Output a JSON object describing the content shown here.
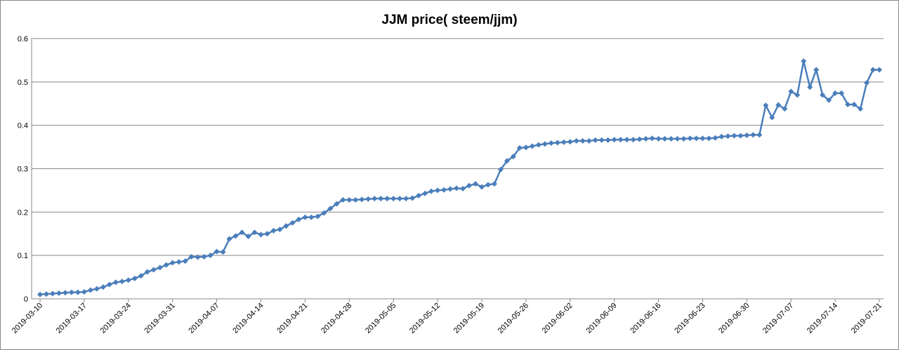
{
  "chart_data": {
    "type": "line",
    "title": "JJM price( steem/jjm)",
    "x": [
      "2019-03-10",
      "2019-03-11",
      "2019-03-12",
      "2019-03-13",
      "2019-03-14",
      "2019-03-15",
      "2019-03-16",
      "2019-03-17",
      "2019-03-18",
      "2019-03-19",
      "2019-03-20",
      "2019-03-21",
      "2019-03-22",
      "2019-03-23",
      "2019-03-24",
      "2019-03-25",
      "2019-03-26",
      "2019-03-27",
      "2019-03-28",
      "2019-03-29",
      "2019-03-30",
      "2019-03-31",
      "2019-04-01",
      "2019-04-02",
      "2019-04-03",
      "2019-04-04",
      "2019-04-05",
      "2019-04-06",
      "2019-04-07",
      "2019-04-08",
      "2019-04-09",
      "2019-04-10",
      "2019-04-11",
      "2019-04-12",
      "2019-04-13",
      "2019-04-14",
      "2019-04-15",
      "2019-04-16",
      "2019-04-17",
      "2019-04-18",
      "2019-04-19",
      "2019-04-20",
      "2019-04-21",
      "2019-04-22",
      "2019-04-23",
      "2019-04-24",
      "2019-04-25",
      "2019-04-26",
      "2019-04-27",
      "2019-04-28",
      "2019-04-29",
      "2019-04-30",
      "2019-05-01",
      "2019-05-02",
      "2019-05-03",
      "2019-05-04",
      "2019-05-05",
      "2019-05-06",
      "2019-05-07",
      "2019-05-08",
      "2019-05-09",
      "2019-05-10",
      "2019-05-11",
      "2019-05-12",
      "2019-05-13",
      "2019-05-14",
      "2019-05-15",
      "2019-05-16",
      "2019-05-17",
      "2019-05-18",
      "2019-05-19",
      "2019-05-20",
      "2019-05-21",
      "2019-05-22",
      "2019-05-23",
      "2019-05-24",
      "2019-05-25",
      "2019-05-26",
      "2019-05-27",
      "2019-05-28",
      "2019-05-29",
      "2019-05-30",
      "2019-05-31",
      "2019-06-01",
      "2019-06-02",
      "2019-06-03",
      "2019-06-04",
      "2019-06-05",
      "2019-06-06",
      "2019-06-07",
      "2019-06-08",
      "2019-06-09",
      "2019-06-10",
      "2019-06-11",
      "2019-06-12",
      "2019-06-13",
      "2019-06-14",
      "2019-06-15",
      "2019-06-16",
      "2019-06-17",
      "2019-06-18",
      "2019-06-19",
      "2019-06-20",
      "2019-06-21",
      "2019-06-22",
      "2019-06-23",
      "2019-06-24",
      "2019-06-25",
      "2019-06-26",
      "2019-06-27",
      "2019-06-28",
      "2019-06-29",
      "2019-06-30",
      "2019-07-01",
      "2019-07-02",
      "2019-07-03",
      "2019-07-04",
      "2019-07-05",
      "2019-07-06",
      "2019-07-07",
      "2019-07-08",
      "2019-07-09",
      "2019-07-10",
      "2019-07-11",
      "2019-07-12",
      "2019-07-13",
      "2019-07-14",
      "2019-07-15",
      "2019-07-16",
      "2019-07-17",
      "2019-07-18",
      "2019-07-19",
      "2019-07-20",
      "2019-07-21"
    ],
    "series": [
      {
        "name": "JJM price",
        "color": "#4a7ebb",
        "values": [
          0.01,
          0.011,
          0.012,
          0.013,
          0.014,
          0.015,
          0.015,
          0.016,
          0.02,
          0.023,
          0.027,
          0.033,
          0.038,
          0.04,
          0.043,
          0.047,
          0.053,
          0.062,
          0.067,
          0.072,
          0.078,
          0.083,
          0.085,
          0.087,
          0.097,
          0.096,
          0.097,
          0.1,
          0.109,
          0.108,
          0.138,
          0.145,
          0.153,
          0.144,
          0.153,
          0.148,
          0.15,
          0.157,
          0.16,
          0.168,
          0.175,
          0.183,
          0.188,
          0.188,
          0.19,
          0.198,
          0.208,
          0.219,
          0.228,
          0.228,
          0.228,
          0.229,
          0.23,
          0.231,
          0.231,
          0.231,
          0.231,
          0.231,
          0.231,
          0.232,
          0.238,
          0.243,
          0.248,
          0.25,
          0.251,
          0.253,
          0.255,
          0.254,
          0.261,
          0.265,
          0.258,
          0.263,
          0.265,
          0.298,
          0.318,
          0.328,
          0.348,
          0.349,
          0.352,
          0.355,
          0.357,
          0.359,
          0.36,
          0.361,
          0.362,
          0.364,
          0.364,
          0.364,
          0.366,
          0.366,
          0.366,
          0.367,
          0.367,
          0.367,
          0.367,
          0.368,
          0.369,
          0.37,
          0.369,
          0.369,
          0.369,
          0.369,
          0.369,
          0.37,
          0.37,
          0.37,
          0.37,
          0.371,
          0.374,
          0.375,
          0.376,
          0.376,
          0.377,
          0.378,
          0.378,
          0.446,
          0.418,
          0.447,
          0.438,
          0.478,
          0.47,
          0.548,
          0.488,
          0.528,
          0.47,
          0.458,
          0.474,
          0.474,
          0.448,
          0.448,
          0.438,
          0.498,
          0.528,
          0.528
        ]
      }
    ],
    "xticks": [
      "2019-03-10",
      "2019-03-17",
      "2019-03-24",
      "2019-03-31",
      "2019-04-07",
      "2019-04-14",
      "2019-04-21",
      "2019-04-28",
      "2019-05-05",
      "2019-05-12",
      "2019-05-19",
      "2019-05-26",
      "2019-06-02",
      "2019-06-09",
      "2019-06-16",
      "2019-06-23",
      "2019-06-30",
      "2019-07-07",
      "2019-07-14",
      "2019-07-21"
    ],
    "ylim": [
      0,
      0.6
    ],
    "yticks": [
      0,
      0.1,
      0.2,
      0.3,
      0.4,
      0.5,
      0.6
    ],
    "grid": true,
    "marker": "diamond"
  }
}
